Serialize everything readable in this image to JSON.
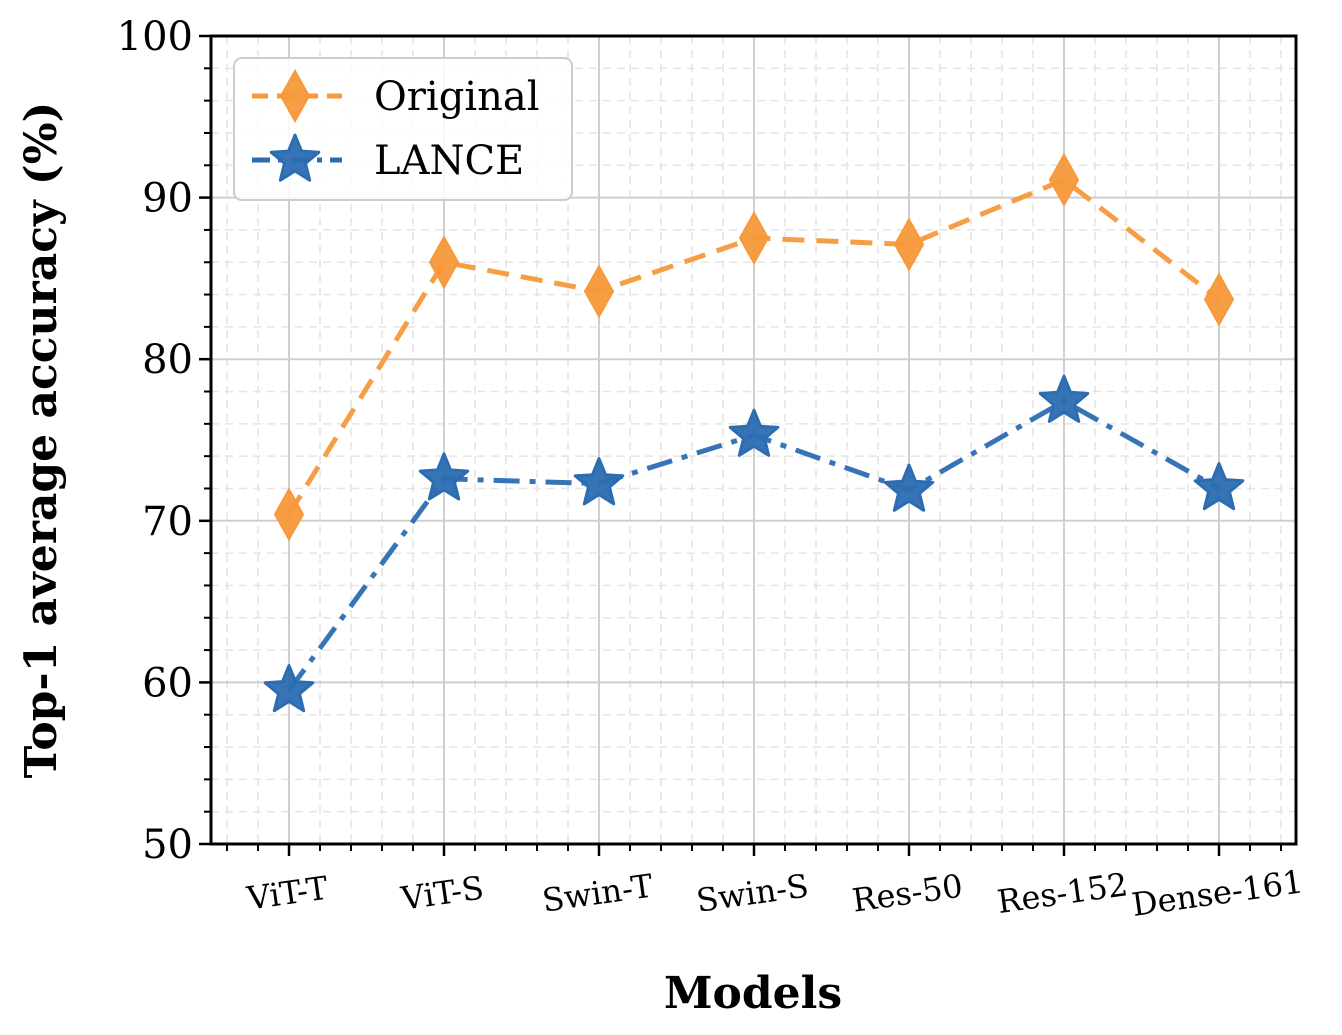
{
  "chart_data": {
    "type": "line",
    "title": "",
    "xlabel": "Models",
    "ylabel": "Top-1 average accuracy (%)",
    "categories": [
      "ViT-T",
      "ViT-S",
      "Swin-T",
      "Swin-S",
      "Res-50",
      "Res-152",
      "Dense-161"
    ],
    "ylim": [
      50,
      100
    ],
    "yticks": [
      50,
      60,
      70,
      80,
      90,
      100
    ],
    "grid": true,
    "legend_position": "top-left",
    "series": [
      {
        "name": "Original",
        "values": [
          70.4,
          86.0,
          84.2,
          87.5,
          87.1,
          91.1,
          83.7
        ],
        "color": "#f7993a",
        "marker": "diamond",
        "linestyle": "dashed"
      },
      {
        "name": "LANCE",
        "values": [
          59.5,
          72.6,
          72.3,
          75.3,
          71.9,
          77.4,
          72.0
        ],
        "color": "#2c6db2",
        "marker": "star",
        "linestyle": "dashdot"
      }
    ]
  }
}
